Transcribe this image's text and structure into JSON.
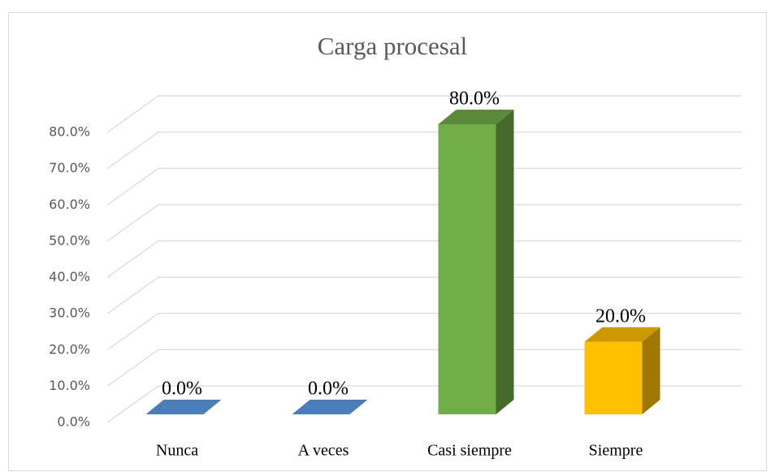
{
  "chart_data": {
    "type": "bar3d",
    "title": "Carga procesal",
    "categories": [
      "Nunca",
      "A veces",
      "Casi siempre",
      "Siempre"
    ],
    "values": [
      0,
      0,
      80,
      20
    ],
    "value_labels": [
      "0.0%",
      "0.0%",
      "80.0%",
      "20.0%"
    ],
    "colors": [
      "#4a7ebb",
      "#4a7ebb",
      "#70ad47",
      "#ffc000"
    ],
    "ylim": [
      0,
      80
    ],
    "yticks": [
      {
        "value": 0,
        "label": "0.0%"
      },
      {
        "value": 10,
        "label": "10.0%"
      },
      {
        "value": 20,
        "label": "20.0%"
      },
      {
        "value": 30,
        "label": "30.0%"
      },
      {
        "value": 40,
        "label": "40.0%"
      },
      {
        "value": 50,
        "label": "50.0%"
      },
      {
        "value": 60,
        "label": "60.0%"
      },
      {
        "value": 70,
        "label": "70.0%"
      },
      {
        "value": 80,
        "label": "80.0%"
      }
    ],
    "grid": true
  }
}
